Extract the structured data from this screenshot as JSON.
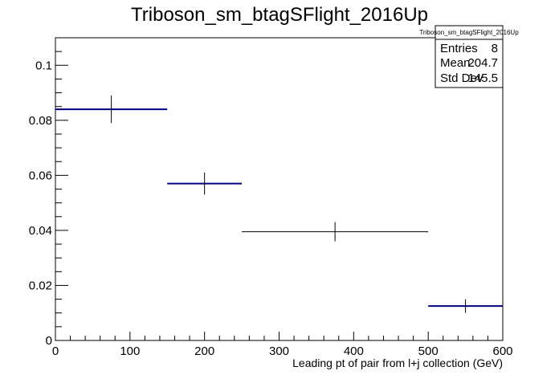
{
  "chart_data": {
    "type": "histogram",
    "title": "Triboson_sm_btagSFlight_2016Up",
    "xlabel": "Leading pt of pair from l+j collection (GeV)",
    "ylabel": "",
    "xlim": [
      0,
      600
    ],
    "ylim": [
      0,
      0.11
    ],
    "x_ticks": [
      "0",
      "100",
      "200",
      "300",
      "400",
      "500",
      "600"
    ],
    "y_ticks": [
      "0",
      "0.02",
      "0.04",
      "0.06",
      "0.08",
      "0.1"
    ],
    "bins": [
      {
        "x_low": 0,
        "x_high": 150,
        "x_center": 75,
        "y": 0.084,
        "y_err": 0.005,
        "color": "#000080"
      },
      {
        "x_low": 150,
        "x_high": 250,
        "x_center": 200,
        "y": 0.057,
        "y_err": 0.004,
        "color": "#000080"
      },
      {
        "x_low": 250,
        "x_high": 500,
        "x_center": 375,
        "y": 0.0395,
        "y_err": 0.0035,
        "color": "#000000"
      },
      {
        "x_low": 500,
        "x_high": 600,
        "x_center": 550,
        "y": 0.0125,
        "y_err": 0.0025,
        "color": "#000080"
      }
    ],
    "stats_box": {
      "title": "Triboson_sm_btagSFlight_2016Up",
      "rows": [
        {
          "label": "Entries",
          "value": "8"
        },
        {
          "label": "Mean",
          "value": "204.7"
        },
        {
          "label": "Std Dev",
          "value": "145.5"
        }
      ]
    },
    "grid": false,
    "legend": "none"
  }
}
